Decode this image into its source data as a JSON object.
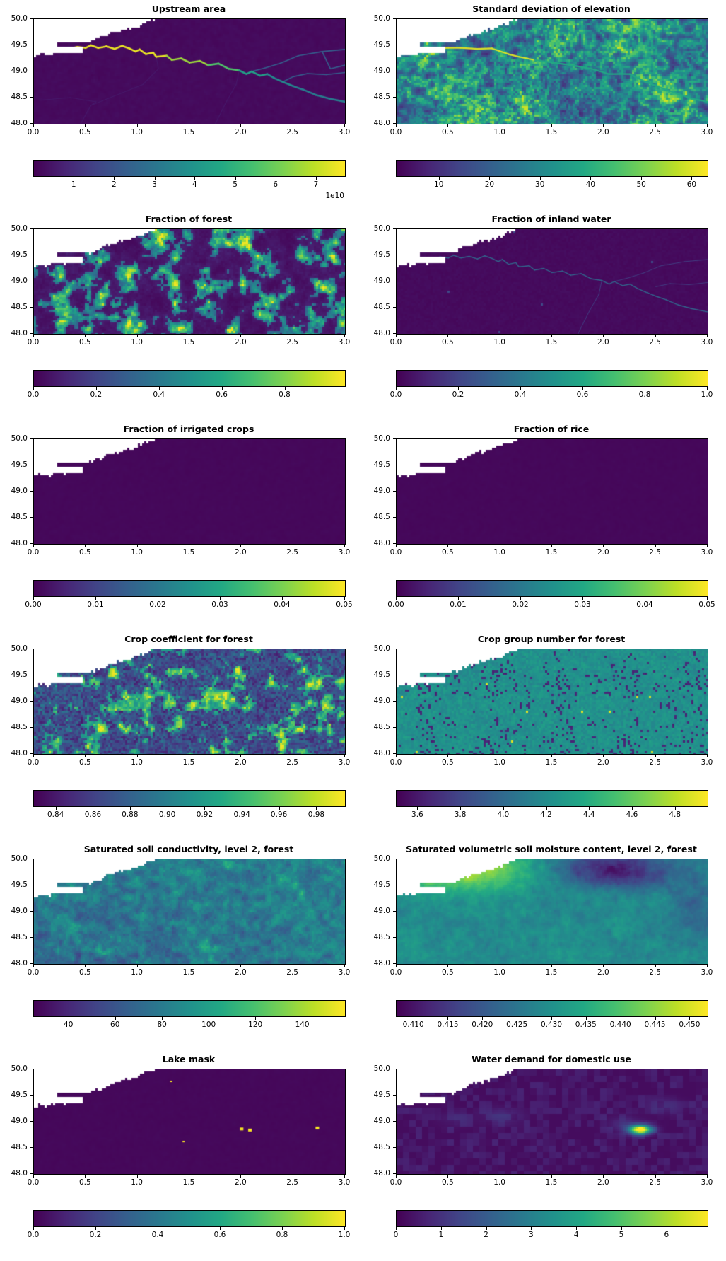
{
  "figure": {
    "background": "#ffffff",
    "text_color": "#000000",
    "description": "Grid of 12 geospatial heatmap panels (viridis colormap) with horizontal colorbars"
  },
  "chart_data": {
    "type": "heatmap",
    "colormap": {
      "name": "viridis",
      "stops": [
        "#440154",
        "#482475",
        "#414487",
        "#355f8d",
        "#2a788e",
        "#21918c",
        "#22a884",
        "#44bf70",
        "#7ad151",
        "#bddf26",
        "#fde725"
      ],
      "nodata_color": "#ffffff"
    },
    "shared_axes": {
      "xlim": [
        0.0,
        3.0
      ],
      "ylim": [
        48.0,
        50.0
      ],
      "xtick_labels": [
        "0.0",
        "0.5",
        "1.0",
        "1.5",
        "2.0",
        "2.5",
        "3.0"
      ],
      "xtick_positions": [
        0,
        0.1667,
        0.3333,
        0.5,
        0.6667,
        0.8333,
        1
      ],
      "ytick_labels": [
        "50.0",
        "49.5",
        "49.0",
        "48.5",
        "48.0"
      ],
      "ytick_positions": [
        0,
        0.25,
        0.5,
        0.75,
        1
      ]
    },
    "panels": [
      {
        "id": "upstream-area",
        "title": "Upstream area",
        "pattern": "river",
        "seed": 11,
        "range": [
          0,
          77000000000
        ],
        "colorbar": {
          "labels": [
            "1",
            "2",
            "3",
            "4",
            "5",
            "6",
            "7"
          ],
          "positions": [
            0.13,
            0.26,
            0.39,
            0.519,
            0.649,
            0.779,
            0.909
          ],
          "offset_text": "1e10"
        },
        "features": {
          "main_river": [
            [
              0.35,
              49.44
            ],
            [
              0.42,
              49.47
            ],
            [
              0.5,
              49.45
            ],
            [
              0.55,
              49.5
            ],
            [
              0.62,
              49.45
            ],
            [
              0.7,
              49.48
            ],
            [
              0.78,
              49.43
            ],
            [
              0.85,
              49.49
            ],
            [
              0.92,
              49.44
            ],
            [
              0.98,
              49.38
            ],
            [
              1.02,
              49.42
            ],
            [
              1.08,
              49.33
            ],
            [
              1.15,
              49.36
            ],
            [
              1.18,
              49.28
            ],
            [
              1.28,
              49.3
            ],
            [
              1.33,
              49.22
            ],
            [
              1.42,
              49.25
            ],
            [
              1.5,
              49.17
            ],
            [
              1.6,
              49.2
            ],
            [
              1.68,
              49.12
            ],
            [
              1.78,
              49.15
            ],
            [
              1.88,
              49.05
            ],
            [
              1.98,
              49.02
            ],
            [
              2.05,
              48.95
            ],
            [
              2.1,
              49.0
            ],
            [
              2.18,
              48.92
            ],
            [
              2.25,
              48.95
            ],
            [
              2.32,
              48.87
            ],
            [
              2.4,
              48.8
            ],
            [
              2.5,
              48.72
            ],
            [
              2.6,
              48.65
            ],
            [
              2.72,
              48.55
            ],
            [
              2.85,
              48.48
            ],
            [
              3.0,
              48.42
            ]
          ],
          "tributaries": [
            [
              [
                3.0,
                49.42
              ],
              [
                2.78,
                49.38
              ],
              [
                2.55,
                49.3
              ],
              [
                2.38,
                49.16
              ],
              [
                2.22,
                49.06
              ],
              [
                2.1,
                49.0
              ]
            ],
            [
              [
                3.0,
                48.98
              ],
              [
                2.82,
                48.94
              ],
              [
                2.64,
                48.96
              ],
              [
                2.5,
                48.9
              ],
              [
                2.4,
                48.8
              ]
            ],
            [
              [
                3.0,
                49.12
              ],
              [
                2.86,
                49.05
              ],
              [
                2.78,
                49.38
              ]
            ]
          ],
          "faint_streams": [
            [
              [
                0.45,
                48.0
              ],
              [
                0.55,
                48.35
              ],
              [
                0.8,
                48.55
              ],
              [
                1.05,
                48.75
              ],
              [
                1.2,
                49.05
              ],
              [
                1.18,
                49.28
              ]
            ],
            [
              [
                1.75,
                48.0
              ],
              [
                1.85,
                48.4
              ],
              [
                1.95,
                48.75
              ],
              [
                1.98,
                49.02
              ]
            ],
            [
              [
                0.05,
                48.45
              ],
              [
                0.35,
                48.5
              ],
              [
                0.6,
                48.42
              ],
              [
                0.55,
                48.35
              ]
            ]
          ]
        }
      },
      {
        "id": "std-elevation",
        "title": "Standard deviation of elevation",
        "pattern": "elevation",
        "seed": 22,
        "range": [
          0,
          63
        ],
        "colorbar": {
          "labels": [
            "10",
            "20",
            "30",
            "40",
            "50",
            "60"
          ],
          "positions": [
            0.138,
            0.301,
            0.463,
            0.626,
            0.789,
            0.951
          ]
        },
        "features": {
          "main_river": [
            [
              0.35,
              49.44
            ],
            [
              0.5,
              49.45
            ],
            [
              0.62,
              49.45
            ],
            [
              0.78,
              49.43
            ],
            [
              0.92,
              49.44
            ],
            [
              1.08,
              49.33
            ],
            [
              1.18,
              49.28
            ],
            [
              1.33,
              49.22
            ],
            [
              1.5,
              49.17
            ],
            [
              1.68,
              49.12
            ],
            [
              1.88,
              49.05
            ],
            [
              2.05,
              48.95
            ],
            [
              2.25,
              48.95
            ],
            [
              2.4,
              48.8
            ],
            [
              2.6,
              48.65
            ],
            [
              2.85,
              48.48
            ],
            [
              3.0,
              48.42
            ]
          ]
        }
      },
      {
        "id": "fraction-forest",
        "title": "Fraction of forest",
        "pattern": "forest",
        "seed": 33,
        "range": [
          0,
          0.99
        ],
        "colorbar": {
          "labels": [
            "0.0",
            "0.2",
            "0.4",
            "0.6",
            "0.8"
          ],
          "positions": [
            0.0,
            0.202,
            0.404,
            0.606,
            0.808
          ]
        }
      },
      {
        "id": "fraction-inland-water",
        "title": "Fraction of inland water",
        "pattern": "inland-water",
        "seed": 44,
        "range": [
          0,
          1.0
        ],
        "colorbar": {
          "labels": [
            "0.0",
            "0.2",
            "0.4",
            "0.6",
            "0.8",
            "1.0"
          ],
          "positions": [
            0,
            0.2,
            0.4,
            0.6,
            0.8,
            1.0
          ]
        },
        "features": {
          "main_river": [
            [
              0.35,
              49.44
            ],
            [
              0.42,
              49.47
            ],
            [
              0.5,
              49.45
            ],
            [
              0.55,
              49.5
            ],
            [
              0.62,
              49.45
            ],
            [
              0.7,
              49.48
            ],
            [
              0.78,
              49.43
            ],
            [
              0.85,
              49.49
            ],
            [
              0.92,
              49.44
            ],
            [
              0.98,
              49.38
            ],
            [
              1.02,
              49.42
            ],
            [
              1.08,
              49.33
            ],
            [
              1.15,
              49.36
            ],
            [
              1.18,
              49.28
            ],
            [
              1.28,
              49.3
            ],
            [
              1.33,
              49.22
            ],
            [
              1.42,
              49.25
            ],
            [
              1.5,
              49.17
            ],
            [
              1.6,
              49.2
            ],
            [
              1.68,
              49.12
            ],
            [
              1.78,
              49.15
            ],
            [
              1.88,
              49.05
            ],
            [
              1.98,
              49.02
            ],
            [
              2.05,
              48.95
            ],
            [
              2.1,
              49.0
            ],
            [
              2.18,
              48.92
            ],
            [
              2.25,
              48.95
            ],
            [
              2.32,
              48.87
            ],
            [
              2.4,
              48.8
            ],
            [
              2.5,
              48.72
            ],
            [
              2.6,
              48.65
            ],
            [
              2.72,
              48.55
            ],
            [
              2.85,
              48.48
            ],
            [
              3.0,
              48.42
            ]
          ],
          "tributaries": [
            [
              [
                3.0,
                49.42
              ],
              [
                2.78,
                49.38
              ],
              [
                2.55,
                49.3
              ],
              [
                2.38,
                49.16
              ],
              [
                2.22,
                49.06
              ],
              [
                2.1,
                49.0
              ]
            ],
            [
              [
                3.0,
                48.98
              ],
              [
                2.82,
                48.94
              ],
              [
                2.64,
                48.96
              ],
              [
                2.5,
                48.9
              ]
            ],
            [
              [
                1.75,
                48.0
              ],
              [
                1.85,
                48.4
              ],
              [
                1.95,
                48.75
              ],
              [
                1.98,
                49.02
              ]
            ]
          ]
        }
      },
      {
        "id": "fraction-irrigated-crops",
        "title": "Fraction of irrigated crops",
        "pattern": "flat",
        "seed": 55,
        "range": [
          0,
          0.05
        ],
        "colorbar": {
          "labels": [
            "0.00",
            "0.01",
            "0.02",
            "0.03",
            "0.04",
            "0.05"
          ],
          "positions": [
            0,
            0.2,
            0.4,
            0.6,
            0.8,
            1.0
          ]
        }
      },
      {
        "id": "fraction-rice",
        "title": "Fraction of rice",
        "pattern": "flat",
        "seed": 66,
        "range": [
          0,
          0.05
        ],
        "colorbar": {
          "labels": [
            "0.00",
            "0.01",
            "0.02",
            "0.03",
            "0.04",
            "0.05"
          ],
          "positions": [
            0,
            0.2,
            0.4,
            0.6,
            0.8,
            1.0
          ]
        }
      },
      {
        "id": "crop-coefficient-forest",
        "title": "Crop coefficient for forest",
        "pattern": "crop-coeff",
        "seed": 77,
        "range": [
          0.828,
          0.995
        ],
        "colorbar": {
          "labels": [
            "0.84",
            "0.86",
            "0.88",
            "0.90",
            "0.92",
            "0.94",
            "0.96",
            "0.98"
          ],
          "positions": [
            0.072,
            0.192,
            0.311,
            0.431,
            0.551,
            0.671,
            0.79,
            0.91
          ]
        }
      },
      {
        "id": "crop-group-forest",
        "title": "Crop group number for forest",
        "pattern": "crop-group",
        "seed": 88,
        "range": [
          3.5,
          4.95
        ],
        "colorbar": {
          "labels": [
            "3.6",
            "3.8",
            "4.0",
            "4.2",
            "4.4",
            "4.6",
            "4.8"
          ],
          "positions": [
            0.069,
            0.207,
            0.345,
            0.483,
            0.621,
            0.759,
            0.897
          ]
        }
      },
      {
        "id": "sat-soil-conductivity",
        "title": "Saturated soil conductivity, level 2, forest",
        "pattern": "soil-conductivity",
        "seed": 99,
        "range": [
          25,
          158
        ],
        "colorbar": {
          "labels": [
            "40",
            "60",
            "80",
            "100",
            "120",
            "140"
          ],
          "positions": [
            0.113,
            0.263,
            0.414,
            0.564,
            0.714,
            0.865
          ]
        }
      },
      {
        "id": "sat-soil-moisture",
        "title": "Saturated volumetric soil moisture content, level 2, forest",
        "pattern": "soil-moisture",
        "seed": 111,
        "range": [
          0.4075,
          0.4525
        ],
        "colorbar": {
          "labels": [
            "0.410",
            "0.415",
            "0.420",
            "0.425",
            "0.430",
            "0.435",
            "0.440",
            "0.445",
            "0.450"
          ],
          "positions": [
            0.056,
            0.167,
            0.278,
            0.389,
            0.5,
            0.611,
            0.722,
            0.833,
            0.944
          ]
        }
      },
      {
        "id": "lake-mask",
        "title": "Lake mask",
        "pattern": "lakes",
        "seed": 122,
        "range": [
          0,
          1.0
        ],
        "colorbar": {
          "labels": [
            "0.0",
            "0.2",
            "0.4",
            "0.6",
            "0.8",
            "1.0"
          ],
          "positions": [
            0,
            0.2,
            0.4,
            0.6,
            0.8,
            1.0
          ]
        },
        "features": {
          "lakes": [
            [
              1.32,
              49.77,
              1
            ],
            [
              1.44,
              48.62,
              1
            ],
            [
              2.0,
              48.86,
              2
            ],
            [
              2.08,
              48.84,
              2
            ],
            [
              2.73,
              48.88,
              2
            ]
          ]
        }
      },
      {
        "id": "water-demand-domestic",
        "title": "Water demand for domestic use",
        "pattern": "water-demand",
        "seed": 133,
        "range": [
          0,
          6.9
        ],
        "colorbar": {
          "labels": [
            "0",
            "1",
            "2",
            "3",
            "4",
            "5",
            "6"
          ],
          "positions": [
            0,
            0.145,
            0.29,
            0.435,
            0.58,
            0.725,
            0.87
          ]
        },
        "features": {
          "city_blob": {
            "lon": 2.35,
            "lat": 48.85
          },
          "minor_bumps": [
            [
              1.0,
              49.12,
              0.07
            ],
            [
              2.6,
              49.3,
              0.06
            ],
            [
              2.2,
              48.95,
              0.08
            ],
            [
              0.55,
              49.05,
              0.04
            ]
          ]
        }
      }
    ],
    "coastline_nodata": {
      "boundary": [
        [
          0,
          0.365
        ],
        [
          0.02,
          0.335
        ],
        [
          0.05,
          0.35
        ],
        [
          0.075,
          0.315
        ],
        [
          0.1,
          0.33
        ],
        [
          0.118,
          0.275
        ],
        [
          0.14,
          0.25
        ],
        [
          0.165,
          0.24
        ],
        [
          0.19,
          0.21
        ],
        [
          0.22,
          0.175
        ],
        [
          0.25,
          0.14
        ],
        [
          0.28,
          0.115
        ],
        [
          0.31,
          0.09
        ],
        [
          0.34,
          0.06
        ],
        [
          0.37,
          0.025
        ],
        [
          0.395,
          0.002
        ],
        [
          1,
          0
        ]
      ],
      "tongue_white": [
        0.05,
        0.155,
        0.272,
        0.318
      ],
      "peninsula_land": [
        0.078,
        0.178,
        0.214,
        0.266
      ]
    }
  }
}
